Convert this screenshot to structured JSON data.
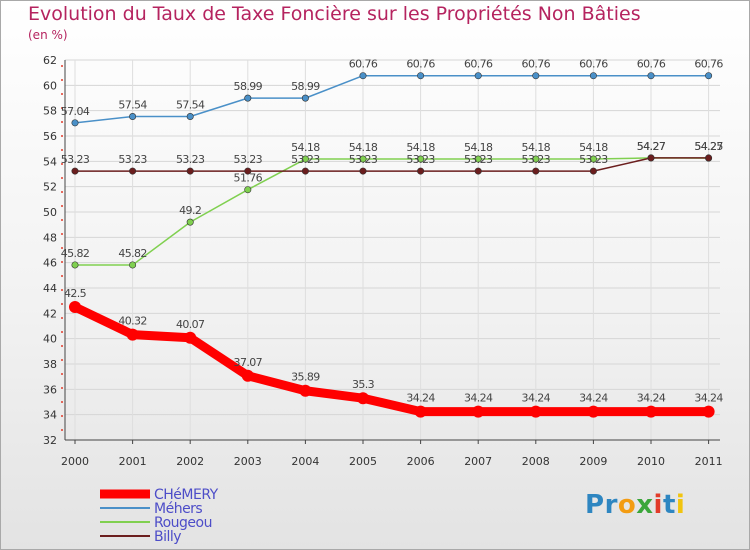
{
  "title": "Evolution du Taux de Taxe Foncière sur les Propriétés Non Bâties",
  "unit_label": "(en %)",
  "logo": {
    "text": "Proxiti",
    "letters": [
      {
        "ch": "P",
        "color": "#2e86c1"
      },
      {
        "ch": "r",
        "color": "#2e86c1"
      },
      {
        "ch": "o",
        "color": "#f39c12"
      },
      {
        "ch": "x",
        "color": "#3aa63a"
      },
      {
        "ch": "i",
        "color": "#e23b2a"
      },
      {
        "ch": "t",
        "color": "#2e86c1"
      },
      {
        "ch": "i",
        "color": "#f1c40f"
      }
    ]
  },
  "chart_data": {
    "type": "line",
    "categories": [
      "2000",
      "2001",
      "2002",
      "2003",
      "2004",
      "2005",
      "2006",
      "2007",
      "2008",
      "2009",
      "2010",
      "2011"
    ],
    "ylim": [
      32,
      62
    ],
    "yticks": [
      32,
      34,
      36,
      38,
      40,
      42,
      44,
      46,
      48,
      50,
      52,
      54,
      56,
      58,
      60,
      62
    ],
    "grid": true,
    "legend_position": "bottom-left",
    "series": [
      {
        "name": "CHéMERY",
        "color": "#ff0000",
        "thick": true,
        "values": [
          42.5,
          40.32,
          40.07,
          37.07,
          35.89,
          35.3,
          34.24,
          34.24,
          34.24,
          34.24,
          34.24,
          34.24
        ],
        "labels": [
          "42.5",
          "40.32",
          "40.07",
          "37.07",
          "35.89",
          "35.3",
          "34.24",
          "34.24",
          "34.24",
          "34.24",
          "34.24",
          "34.24"
        ]
      },
      {
        "name": "Méhers",
        "color": "#4a90c8",
        "thick": false,
        "values": [
          57.04,
          57.54,
          57.54,
          58.99,
          58.99,
          60.76,
          60.76,
          60.76,
          60.76,
          60.76,
          60.76,
          60.76
        ],
        "labels": [
          "57.04",
          "57.54",
          "57.54",
          "58.99",
          "58.99",
          "60.76",
          "60.76",
          "60.76",
          "60.76",
          "60.76",
          "60.76",
          "60.76"
        ]
      },
      {
        "name": "Rougeou",
        "color": "#80d050",
        "thick": false,
        "values": [
          45.82,
          45.82,
          49.2,
          51.76,
          54.18,
          54.18,
          54.18,
          54.18,
          54.18,
          54.18,
          54.27,
          54.25
        ],
        "labels": [
          "45.82",
          "45.82",
          "49.2",
          "51.76",
          "54.18",
          "54.18",
          "54.18",
          "54.18",
          "54.18",
          "54.18",
          "54.27",
          "54.25"
        ]
      },
      {
        "name": "Billy",
        "color": "#6b1e1e",
        "thick": false,
        "values": [
          53.23,
          53.23,
          53.23,
          53.23,
          53.23,
          53.23,
          53.23,
          53.23,
          53.23,
          53.23,
          54.27,
          54.27
        ],
        "labels": [
          "53.23",
          "53.23",
          "53.23",
          "53.23",
          "53.23",
          "53.23",
          "53.23",
          "53.23",
          "53.23",
          "53.23",
          "54.27",
          "54.27"
        ]
      }
    ]
  }
}
